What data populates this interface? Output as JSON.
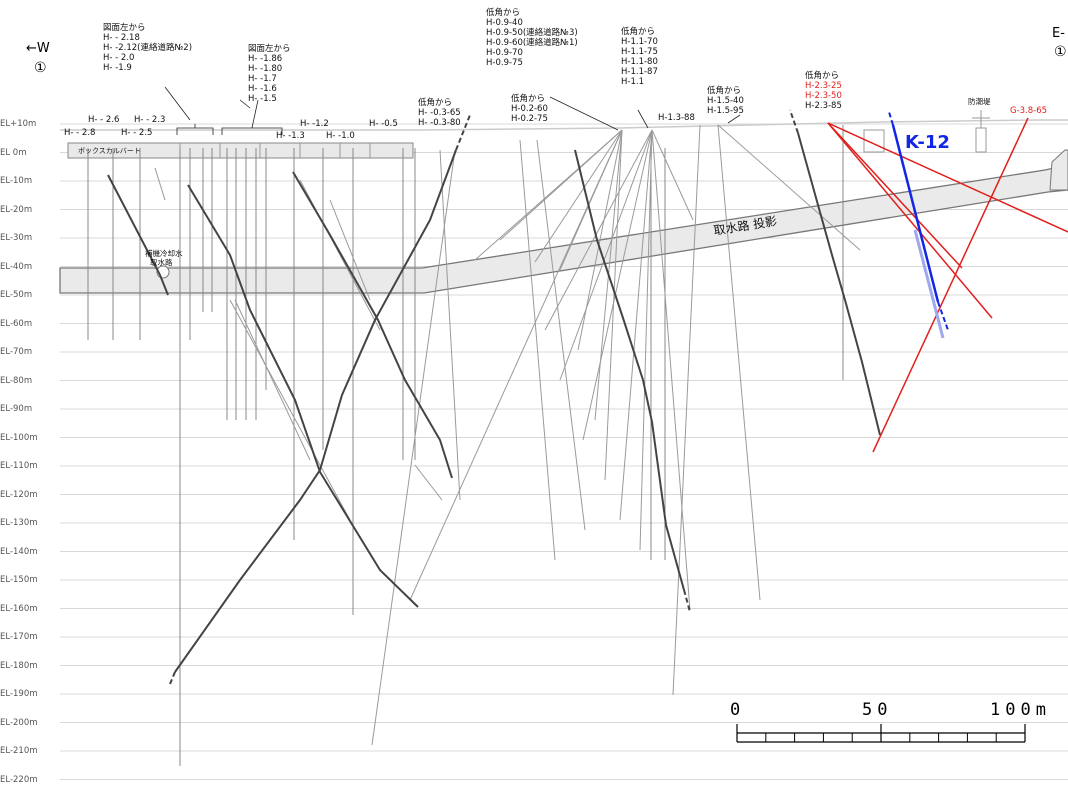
{
  "directions": {
    "west": "←W",
    "west_marker": "①",
    "east": "E-",
    "east_marker": "①"
  },
  "elevation_labels": [
    "EL+10m",
    "EL 0m",
    "EL-10m",
    "EL-20m",
    "EL-30m",
    "EL-40m",
    "EL-50m",
    "EL-60m",
    "EL-70m",
    "EL-80m",
    "EL-90m",
    "EL-100m",
    "EL-110m",
    "EL-120m",
    "EL-130m",
    "EL-140m",
    "EL-150m",
    "EL-160m",
    "EL-170m",
    "EL-180m",
    "EL-190m",
    "EL-200m",
    "EL-210m",
    "EL-220m"
  ],
  "structures": {
    "box_culvert": "ボックスカルバート",
    "cooling_intake_line1": "補機冷却水",
    "cooling_intake_line2": "取水路",
    "intake_projection": "取水路 投影",
    "seawall": "防潮堤"
  },
  "fault": {
    "name": "K-12",
    "color": "#1226e6"
  },
  "groups": {
    "g1": {
      "title": "図面左から",
      "lines": [
        "H- - 2.18",
        "H- -2.12(連絡道路№2)",
        "H- - 2.0",
        "H- -1.9"
      ]
    },
    "g2": {
      "title": "図面左から",
      "lines": [
        "H- -1.86",
        "H- -1.80",
        "H- -1.7",
        "H- -1.6",
        "H- -1.5"
      ]
    },
    "g3": {
      "title": "低角から",
      "lines": [
        "H- -0.3-65",
        "H- -0.3-80"
      ]
    },
    "g4": {
      "title": "低角から",
      "lines": [
        "H-0.9-40",
        "H-0.9-50(連絡道路№3)",
        "H-0.9-60(連絡道路№1)",
        "H-0.9-70",
        "H-0.9-75"
      ]
    },
    "g5": {
      "title": "低角から",
      "lines": [
        "H-0.2-60",
        "H-0.2-75"
      ]
    },
    "g6": {
      "title": "低角から",
      "lines": [
        "H-1.1-70",
        "H-1.1-75",
        "H-1.1-80",
        "H-1.1-87",
        "H-1.1"
      ]
    },
    "g7": {
      "title": "低角から",
      "lines": [
        "H-1.5-40",
        "H-1.5-95"
      ]
    },
    "g8": {
      "title": "低角から",
      "lines_red": [
        "H-2.3-25",
        "H-2.3-50"
      ],
      "lines": [
        "H-2.3-85"
      ]
    }
  },
  "borehole_labels": {
    "h26": "H- - 2.6",
    "h23": "H- - 2.3",
    "h28": "H- - 2.8",
    "h25": "H- - 2.5",
    "h12": "H- -1.2",
    "h05": "H- -0.5",
    "h13": "H- -1.3",
    "h10": "H- -1.0",
    "h1388": "H-1.3-88",
    "g3865": "G-3.8-65"
  },
  "scale": {
    "labels": [
      "0",
      "50",
      "100m"
    ]
  },
  "colors": {
    "red": "#e0201c",
    "blue": "#1226e6",
    "grid": "#d8d8d8",
    "structure_fill": "#e9e9e9"
  }
}
